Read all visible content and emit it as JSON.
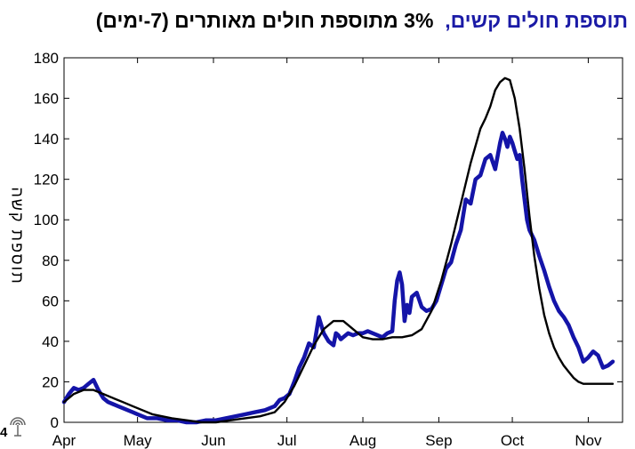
{
  "title": {
    "part1": "תוספת חולים קשים,",
    "part2": "3% מתוספת חולים מאותרים (7-ימים)"
  },
  "page_number": "4",
  "logo_icon": "organization-logo-icon",
  "chart_data": {
    "type": "line",
    "title": "תוספת חולים קשים, 3% מתוספת חולים מאותרים (7-ימים)",
    "xlabel": "",
    "ylabel": "תוספת קשה",
    "ylim": [
      0,
      180
    ],
    "xlim": [
      "Apr 1",
      "Nov 15"
    ],
    "yticks": [
      0,
      20,
      40,
      60,
      80,
      100,
      120,
      140,
      160,
      180
    ],
    "xticks": [
      {
        "label": "Apr",
        "day": 0
      },
      {
        "label": "May",
        "day": 30
      },
      {
        "label": "Jun",
        "day": 61
      },
      {
        "label": "Jul",
        "day": 91
      },
      {
        "label": "Aug",
        "day": 122
      },
      {
        "label": "Sep",
        "day": 153
      },
      {
        "label": "Oct",
        "day": 183
      },
      {
        "label": "Nov",
        "day": 214
      }
    ],
    "grid": false,
    "series": [
      {
        "color": "#1414a8",
        "x": [
          0,
          2,
          4,
          6,
          8,
          10,
          12,
          14,
          16,
          18,
          20,
          22,
          24,
          26,
          28,
          30,
          34,
          38,
          42,
          46,
          50,
          54,
          58,
          62,
          66,
          70,
          74,
          78,
          82,
          86,
          88,
          90,
          92,
          94,
          96,
          98,
          100,
          102,
          104,
          106,
          108,
          110,
          111,
          112,
          113,
          114,
          116,
          118,
          120,
          122,
          124,
          126,
          128,
          130,
          132,
          134,
          135,
          136,
          137,
          138,
          139,
          140,
          141,
          142,
          144,
          146,
          148,
          150,
          152,
          154,
          156,
          158,
          160,
          162,
          164,
          166,
          168,
          170,
          172,
          174,
          176,
          178,
          179,
          180,
          181,
          182,
          183,
          184,
          185,
          186,
          187,
          188,
          189,
          190,
          192,
          194,
          196,
          198,
          200,
          202,
          204,
          206,
          208,
          210,
          212,
          214,
          216,
          218,
          220,
          222,
          224
        ],
        "y": [
          10,
          14,
          17,
          16,
          17,
          19,
          21,
          16,
          12,
          10,
          9,
          8,
          7,
          6,
          5,
          4,
          2,
          2,
          1,
          1,
          0,
          0,
          1,
          1,
          2,
          3,
          4,
          5,
          6,
          8,
          11,
          12,
          14,
          20,
          27,
          32,
          39,
          37,
          52,
          44,
          40,
          38,
          44,
          43,
          41,
          42,
          44,
          43,
          44,
          44,
          45,
          44,
          43,
          42,
          44,
          45,
          60,
          70,
          74,
          68,
          50,
          58,
          54,
          62,
          64,
          57,
          55,
          56,
          60,
          68,
          76,
          79,
          88,
          95,
          110,
          108,
          120,
          122,
          130,
          132,
          125,
          138,
          143,
          140,
          136,
          141,
          138,
          134,
          130,
          132,
          120,
          110,
          100,
          95,
          90,
          82,
          75,
          67,
          60,
          55,
          52,
          48,
          42,
          37,
          30,
          32,
          35,
          33,
          27,
          28,
          30
        ]
      },
      {
        "color": "#000000",
        "x": [
          0,
          4,
          8,
          12,
          16,
          20,
          24,
          28,
          32,
          36,
          40,
          44,
          50,
          56,
          62,
          68,
          74,
          80,
          86,
          90,
          94,
          98,
          102,
          106,
          110,
          114,
          118,
          122,
          126,
          130,
          134,
          138,
          142,
          146,
          150,
          154,
          158,
          162,
          166,
          170,
          172,
          174,
          176,
          178,
          180,
          182,
          184,
          186,
          188,
          190,
          192,
          194,
          196,
          198,
          200,
          202,
          204,
          206,
          208,
          210,
          212,
          214,
          216,
          218,
          220,
          222,
          224
        ],
        "y": [
          10,
          14,
          16,
          16,
          14,
          12,
          10,
          8,
          6,
          4,
          3,
          2,
          1,
          0,
          0,
          1,
          2,
          3,
          5,
          10,
          18,
          28,
          38,
          46,
          50,
          50,
          46,
          42,
          41,
          41,
          42,
          42,
          43,
          46,
          55,
          70,
          88,
          108,
          128,
          145,
          150,
          156,
          164,
          168,
          170,
          169,
          160,
          145,
          125,
          102,
          82,
          66,
          53,
          44,
          37,
          32,
          28,
          25,
          22,
          20,
          19,
          19,
          19,
          19,
          19,
          19,
          19
        ]
      }
    ]
  }
}
